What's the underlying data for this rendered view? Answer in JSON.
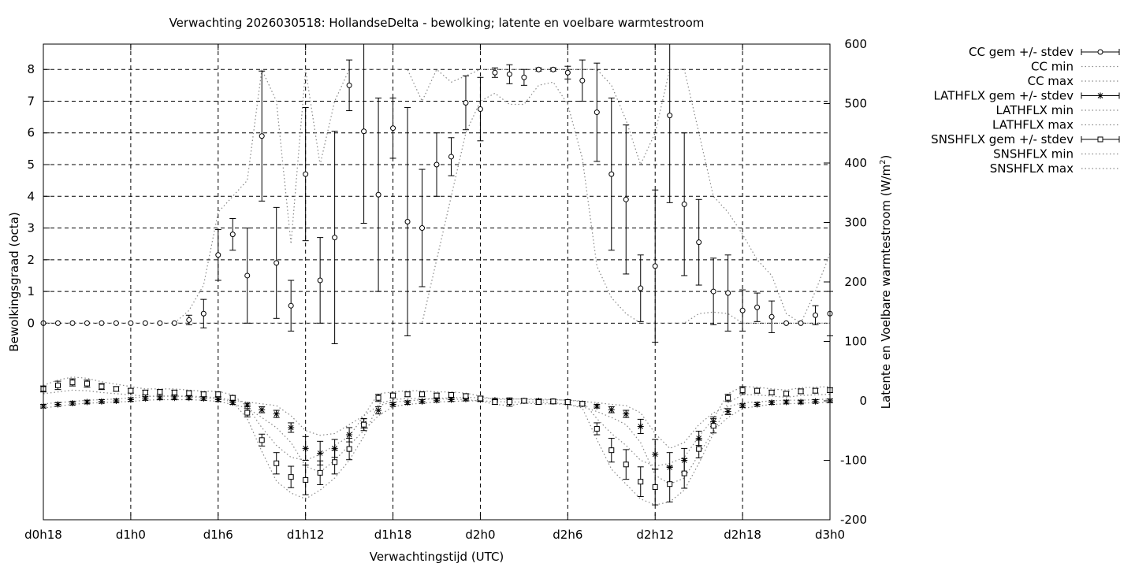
{
  "chart_data": {
    "type": "line",
    "title": "Verwachting 2026030518: HollandseDelta - bewolking; latente en voelbare warmtestroom",
    "xlabel": "Verwachtingstijd (UTC)",
    "ylabel_left": "Bewolkingsgraad (octa)",
    "ylabel_right_prefix": "Latente en Voelbare warmtestroom (W/m",
    "ylabel_right_sup": "2",
    "ylabel_right_suffix": ")",
    "xlim": [
      18,
      72
    ],
    "ylim_left": [
      -6.2,
      8.8
    ],
    "ylim_right": [
      -200,
      600
    ],
    "grid": true,
    "legend_position": "outside-right",
    "x_ticks": [
      {
        "x": 18,
        "label": "d0h18"
      },
      {
        "x": 24,
        "label": "d1h0"
      },
      {
        "x": 30,
        "label": "d1h6"
      },
      {
        "x": 36,
        "label": "d1h12"
      },
      {
        "x": 42,
        "label": "d1h18"
      },
      {
        "x": 48,
        "label": "d2h0"
      },
      {
        "x": 54,
        "label": "d2h6"
      },
      {
        "x": 60,
        "label": "d2h12"
      },
      {
        "x": 66,
        "label": "d2h18"
      },
      {
        "x": 72,
        "label": "d3h0"
      }
    ],
    "y_left_ticks": [
      "0",
      "1",
      "2",
      "3",
      "4",
      "5",
      "6",
      "7",
      "8"
    ],
    "y_right_ticks": [
      "-200",
      "-100",
      "0",
      "100",
      "200",
      "300",
      "400",
      "500",
      "600"
    ],
    "hours": [
      18,
      19,
      20,
      21,
      22,
      23,
      24,
      25,
      26,
      27,
      28,
      29,
      30,
      31,
      32,
      33,
      34,
      35,
      36,
      37,
      38,
      39,
      40,
      41,
      42,
      43,
      44,
      45,
      46,
      47,
      48,
      49,
      50,
      51,
      52,
      53,
      54,
      55,
      56,
      57,
      58,
      59,
      60,
      61,
      62,
      63,
      64,
      65,
      66,
      67,
      68,
      69,
      70,
      71,
      72
    ],
    "legend": [
      {
        "label": "CC gem +/- stdev",
        "style": "errorbar-circle"
      },
      {
        "label": "CC min",
        "style": "dotted"
      },
      {
        "label": "CC max",
        "style": "dotted"
      },
      {
        "label": "LATHFLX gem +/- stdev",
        "style": "errorbar-star"
      },
      {
        "label": "LATHFLX min",
        "style": "dotted"
      },
      {
        "label": "LATHFLX max",
        "style": "dotted"
      },
      {
        "label": "SNSHFLX gem +/- stdev",
        "style": "errorbar-square"
      },
      {
        "label": "SNSHFLX min",
        "style": "dotted"
      },
      {
        "label": "SNSHFLX max",
        "style": "dotted"
      }
    ],
    "series": [
      {
        "name": "CC gem +/- stdev",
        "axis": "left",
        "mean": [
          0,
          0,
          0,
          0,
          0,
          0,
          0,
          0,
          0,
          0,
          0.1,
          0.3,
          2.15,
          2.8,
          1.5,
          5.9,
          1.9,
          0.55,
          4.7,
          1.35,
          2.7,
          7.5,
          6.05,
          4.05,
          6.15,
          3.2,
          3.0,
          5.0,
          5.25,
          6.95,
          6.75,
          7.9,
          7.85,
          7.75,
          8.0,
          8.0,
          7.9,
          7.65,
          6.65,
          4.7,
          3.9,
          1.1,
          1.8,
          6.55,
          3.75,
          2.55,
          1.0,
          0.95,
          0.4,
          0.5,
          0.2,
          0,
          0,
          0.25,
          0.3
        ],
        "stdev": [
          0,
          0,
          0,
          0,
          0,
          0,
          0,
          0,
          0,
          0,
          0.15,
          0.45,
          0.8,
          0.5,
          1.5,
          2.05,
          1.75,
          0.8,
          2.1,
          1.35,
          3.35,
          0.8,
          2.9,
          3.05,
          0.95,
          3.6,
          1.85,
          1.0,
          0.6,
          0.85,
          1.0,
          0.15,
          0.3,
          0.25,
          0.05,
          0.05,
          0.2,
          0.65,
          1.55,
          2.4,
          2.35,
          1.05,
          2.4,
          2.75,
          2.25,
          1.35,
          1.05,
          1.2,
          0.65,
          0.45,
          0.5,
          0,
          0,
          0.3,
          0.7
        ]
      },
      {
        "name": "CC min",
        "axis": "left",
        "values": [
          0,
          0,
          0,
          0,
          0,
          0,
          0,
          0,
          0,
          0,
          0,
          0,
          0,
          0,
          0,
          0,
          0,
          0,
          0,
          0,
          0,
          0,
          0,
          0,
          0,
          0,
          0,
          2.0,
          4.0,
          6.0,
          7.0,
          7.25,
          6.9,
          6.9,
          7.5,
          7.6,
          6.9,
          5.2,
          1.8,
          0.8,
          0.3,
          0,
          0,
          0,
          0,
          0.3,
          0.35,
          0.3,
          0,
          0,
          0,
          0,
          0,
          0,
          0
        ]
      },
      {
        "name": "CC max",
        "axis": "left",
        "values": [
          0,
          0,
          0,
          0,
          0,
          0,
          0,
          0,
          0,
          0,
          0.4,
          1.2,
          3.5,
          4.0,
          4.5,
          8.0,
          7.0,
          2.5,
          8.0,
          5.0,
          7.0,
          8.0,
          8.0,
          8.0,
          8.0,
          8.0,
          7.0,
          8.0,
          7.6,
          7.8,
          8.0,
          8.0,
          8.0,
          8.0,
          8.0,
          8.0,
          8.0,
          8.0,
          8.0,
          7.5,
          6.4,
          5.0,
          6.0,
          8.0,
          8.0,
          6.0,
          4.0,
          3.5,
          2.8,
          2.0,
          1.5,
          0.3,
          0,
          1.0,
          2.2
        ]
      },
      {
        "name": "LATHFLX gem +/- stdev",
        "axis": "right",
        "mean": [
          -9,
          -6,
          -4,
          -2,
          -1,
          0,
          2,
          4,
          5,
          5,
          5,
          4,
          2,
          -3,
          -7,
          -15,
          -22,
          -45,
          -80,
          -88,
          -80,
          -57,
          -38,
          -16,
          -6,
          -3,
          -1,
          1,
          2,
          3,
          2,
          1,
          0,
          0,
          0,
          -1,
          -3,
          -5,
          -9,
          -15,
          -22,
          -43,
          -90,
          -112,
          -100,
          -63,
          -35,
          -18,
          -8,
          -6,
          -3,
          -2,
          -2,
          -1,
          0
        ],
        "stdev": [
          3,
          3,
          3,
          3,
          3,
          3,
          3,
          3,
          3,
          3,
          3,
          3,
          3,
          3,
          3,
          5,
          6,
          8,
          20,
          20,
          15,
          12,
          8,
          6,
          3,
          3,
          3,
          3,
          3,
          3,
          3,
          3,
          3,
          3,
          3,
          3,
          3,
          3,
          3,
          5,
          6,
          12,
          25,
          25,
          20,
          12,
          8,
          5,
          3,
          3,
          3,
          3,
          3,
          3,
          3
        ]
      },
      {
        "name": "LATHFLX min",
        "axis": "right",
        "values": [
          -12,
          -9,
          -6,
          -4,
          -3,
          -2,
          -1,
          1,
          2,
          2,
          2,
          1,
          -1,
          -6,
          -12,
          -28,
          -45,
          -70,
          -110,
          -120,
          -100,
          -75,
          -50,
          -25,
          -10,
          -6,
          -4,
          -2,
          -1,
          0,
          0,
          -1,
          -2,
          -2,
          -2,
          -3,
          -6,
          -10,
          -18,
          -28,
          -40,
          -70,
          -125,
          -140,
          -130,
          -90,
          -50,
          -28,
          -13,
          -9,
          -6,
          -5,
          -4,
          -3,
          -3
        ]
      },
      {
        "name": "LATHFLX max",
        "axis": "right",
        "values": [
          -5,
          -3,
          -1,
          1,
          2,
          3,
          5,
          7,
          8,
          8,
          8,
          7,
          5,
          1,
          -2,
          -5,
          -8,
          -25,
          -50,
          -58,
          -55,
          -40,
          -25,
          -8,
          -2,
          0,
          2,
          4,
          5,
          6,
          5,
          4,
          3,
          3,
          3,
          2,
          1,
          -1,
          -3,
          -6,
          -8,
          -20,
          -55,
          -80,
          -70,
          -40,
          -20,
          -10,
          -3,
          -2,
          0,
          1,
          1,
          2,
          3
        ]
      },
      {
        "name": "SNSHFLX gem +/- stdev",
        "axis": "right",
        "mean": [
          20,
          26,
          31,
          29,
          24,
          20,
          17,
          14,
          15,
          14,
          13,
          11,
          11,
          5,
          -20,
          -66,
          -105,
          -128,
          -133,
          -121,
          -103,
          -81,
          -40,
          5,
          9,
          11,
          11,
          9,
          10,
          8,
          4,
          -2,
          -2,
          0,
          -2,
          -1,
          -2,
          -5,
          -47,
          -83,
          -107,
          -136,
          -145,
          -140,
          -122,
          -81,
          -42,
          5,
          18,
          17,
          14,
          12,
          16,
          17,
          18
        ],
        "stdev": [
          5,
          7,
          6,
          6,
          5,
          4,
          4,
          4,
          4,
          4,
          4,
          4,
          4,
          4,
          7,
          10,
          18,
          18,
          25,
          20,
          20,
          18,
          10,
          6,
          4,
          4,
          4,
          4,
          4,
          4,
          4,
          4,
          7,
          4,
          4,
          4,
          4,
          4,
          10,
          20,
          25,
          25,
          30,
          30,
          25,
          15,
          12,
          6,
          6,
          4,
          4,
          4,
          4,
          4,
          4
        ]
      },
      {
        "name": "SNSHFLX min",
        "axis": "right",
        "values": [
          12,
          15,
          18,
          17,
          14,
          12,
          10,
          8,
          8,
          8,
          7,
          5,
          4,
          -2,
          -30,
          -85,
          -135,
          -155,
          -165,
          -150,
          -130,
          -100,
          -60,
          -5,
          2,
          4,
          4,
          3,
          3,
          2,
          0,
          -6,
          -8,
          -4,
          -5,
          -5,
          -6,
          -12,
          -65,
          -115,
          -140,
          -165,
          -175,
          -170,
          -150,
          -105,
          -55,
          -3,
          10,
          10,
          8,
          6,
          9,
          10,
          11
        ]
      },
      {
        "name": "SNSHFLX max",
        "axis": "right",
        "values": [
          26,
          35,
          40,
          38,
          32,
          28,
          24,
          20,
          20,
          20,
          18,
          16,
          16,
          10,
          -10,
          -45,
          -75,
          -95,
          -100,
          -90,
          -75,
          -60,
          -25,
          12,
          15,
          17,
          17,
          15,
          15,
          13,
          8,
          2,
          3,
          3,
          1,
          2,
          1,
          0,
          -30,
          -55,
          -75,
          -100,
          -110,
          -105,
          -95,
          -60,
          -30,
          12,
          24,
          23,
          20,
          18,
          22,
          23,
          24
        ]
      }
    ]
  }
}
